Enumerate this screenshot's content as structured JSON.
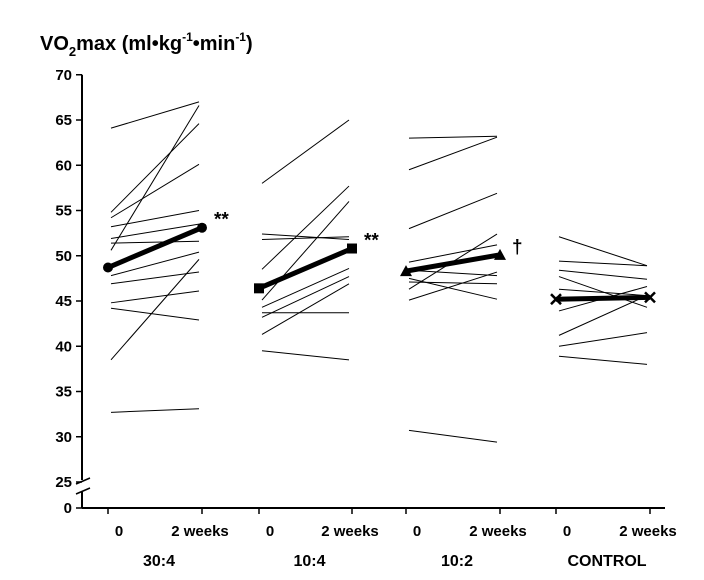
{
  "chart_data": {
    "type": "line",
    "title": "",
    "ylabel": {
      "main": "VO",
      "sub": "2",
      "rest": "max (ml•kg",
      "e1": "-1",
      "mid": "•min",
      "e2": "-1",
      "close": ")"
    },
    "xlabel": "",
    "ylim": [
      25,
      70
    ],
    "y_ticks": [
      0,
      25,
      30,
      35,
      40,
      45,
      50,
      55,
      60,
      65,
      70
    ],
    "axis_break": true,
    "x_tick_labels": [
      "0",
      "2 weeks"
    ],
    "groups": [
      {
        "name": "30:4",
        "mean": [
          48.7,
          53.1
        ],
        "marker": "circle",
        "annotation": "**",
        "individual": [
          [
            32.7,
            33.1
          ],
          [
            38.5,
            49.6
          ],
          [
            44.2,
            42.9
          ],
          [
            44.8,
            46.1
          ],
          [
            46.9,
            48.2
          ],
          [
            47.8,
            50.4
          ],
          [
            51.4,
            51.6
          ],
          [
            51.9,
            53.5
          ],
          [
            53.2,
            55.0
          ],
          [
            54.2,
            60.1
          ],
          [
            54.8,
            64.6
          ],
          [
            64.1,
            67.0
          ],
          [
            50.6,
            66.6
          ]
        ]
      },
      {
        "name": "10:4",
        "mean": [
          46.4,
          50.8
        ],
        "marker": "square",
        "annotation": "**",
        "individual": [
          [
            39.5,
            38.5
          ],
          [
            41.3,
            46.9
          ],
          [
            43.2,
            47.7
          ],
          [
            43.7,
            43.7
          ],
          [
            44.3,
            48.6
          ],
          [
            45.1,
            56.0
          ],
          [
            48.5,
            57.7
          ],
          [
            51.8,
            52.1
          ],
          [
            52.4,
            51.8
          ],
          [
            58.0,
            65.0
          ]
        ]
      },
      {
        "name": "10:2",
        "mean": [
          48.3,
          50.1
        ],
        "marker": "triangle",
        "annotation": "†",
        "individual": [
          [
            30.7,
            29.4
          ],
          [
            45.1,
            48.2
          ],
          [
            46.3,
            52.4
          ],
          [
            47.1,
            46.9
          ],
          [
            47.5,
            45.2
          ],
          [
            48.4,
            47.8
          ],
          [
            49.3,
            51.2
          ],
          [
            53.0,
            56.9
          ],
          [
            59.5,
            63.1
          ],
          [
            63.0,
            63.2
          ]
        ]
      },
      {
        "name": "CONTROL",
        "mean": [
          45.2,
          45.4
        ],
        "marker": "x",
        "annotation": "",
        "individual": [
          [
            38.9,
            38.0
          ],
          [
            40.0,
            41.5
          ],
          [
            41.2,
            45.6
          ],
          [
            43.9,
            46.6
          ],
          [
            46.3,
            45.6
          ],
          [
            47.7,
            44.3
          ],
          [
            48.4,
            47.4
          ],
          [
            49.4,
            48.9
          ],
          [
            52.1,
            48.9
          ]
        ]
      }
    ]
  }
}
